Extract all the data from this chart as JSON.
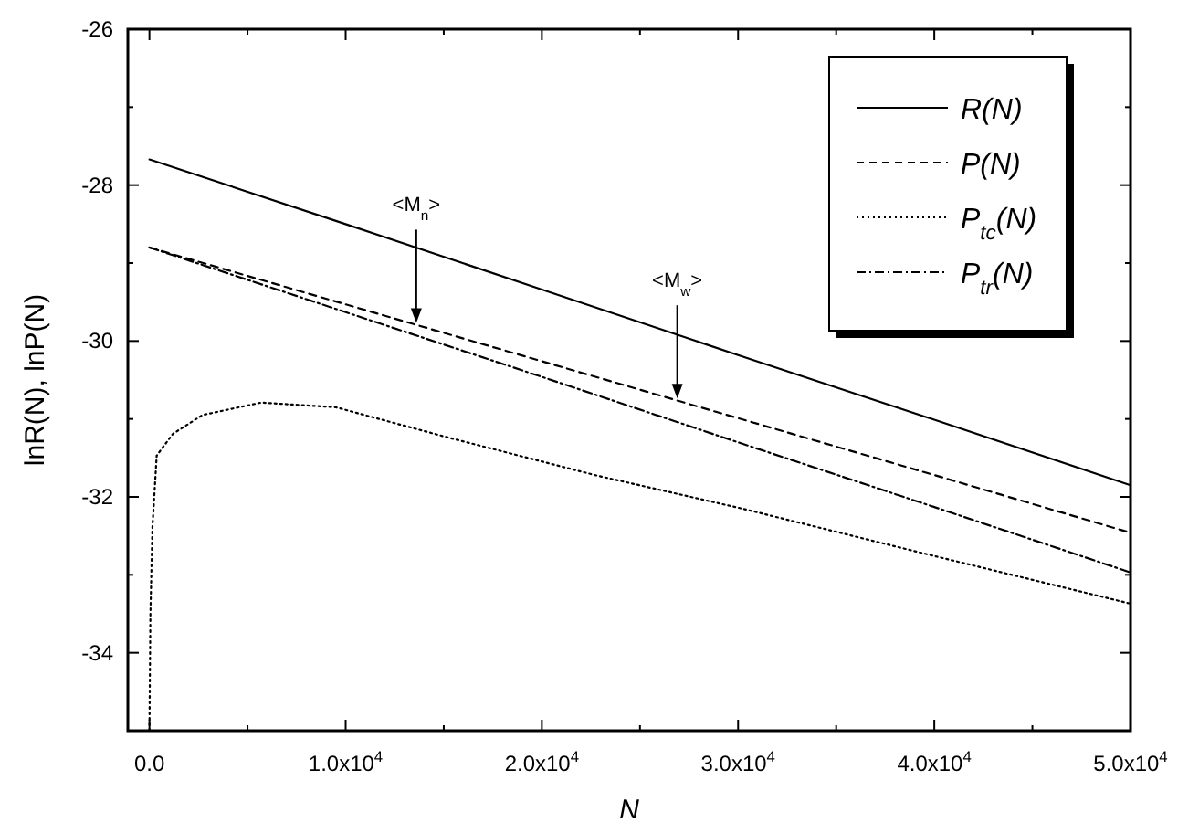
{
  "chart_data": {
    "type": "line",
    "xlabel": "N",
    "ylabel": "lnR(N), lnP(N)",
    "xlim": [
      -1100,
      50000
    ],
    "ylim": [
      -35,
      -26
    ],
    "xticks": [
      {
        "value": 0,
        "label": "0.0"
      },
      {
        "value": 5000,
        "label": null
      },
      {
        "value": 10000,
        "label": "1.0x10$^{4}$"
      },
      {
        "value": 15000,
        "label": null
      },
      {
        "value": 20000,
        "label": "2.0x10$^{4}$"
      },
      {
        "value": 25000,
        "label": null
      },
      {
        "value": 30000,
        "label": "3.0x10$^{4}$"
      },
      {
        "value": 35000,
        "label": null
      },
      {
        "value": 40000,
        "label": "4.0x10$^{4}$"
      },
      {
        "value": 45000,
        "label": null
      },
      {
        "value": 50000,
        "label": "5.0x10$^{4}$"
      }
    ],
    "yticks": [
      {
        "value": -35,
        "label": null
      },
      -34,
      {
        "value": -33,
        "label": null
      },
      -32,
      {
        "value": -31,
        "label": null
      },
      -30,
      {
        "value": -29,
        "label": null
      },
      -28,
      {
        "value": -27,
        "label": null
      },
      -26
    ],
    "grid": false,
    "legend": "top right",
    "marker": "none",
    "series": [
      {
        "name": "R(N)",
        "color": "#000000",
        "line_style": "solid",
        "x": [
          0,
          10000,
          20000,
          30000,
          40000,
          50000
        ],
        "values": [
          -27.67,
          -28.5,
          -29.34,
          -30.18,
          -31.01,
          -31.85
        ]
      },
      {
        "name": "P(N)",
        "color": "#000000",
        "line_style": "dashed",
        "x": [
          0,
          10000,
          20000,
          30000,
          40000,
          50000
        ],
        "values": [
          -28.8,
          -29.53,
          -30.26,
          -30.99,
          -31.72,
          -32.46
        ]
      },
      {
        "name": "P$_{tc}$(N)",
        "color": "#000000",
        "line_style": "dotted",
        "x": [
          0,
          50,
          150,
          370,
          1200,
          2700,
          5700,
          9500,
          15100,
          22700,
          30200,
          39700,
          50000
        ],
        "values": [
          -35,
          -33.5,
          -32.4,
          -31.47,
          -31.19,
          -30.95,
          -30.79,
          -30.85,
          -31.23,
          -31.72,
          -32.15,
          -32.74,
          -33.37
        ]
      },
      {
        "name": "P$_{tr}$(N)",
        "color": "#000000",
        "line_style": "dashdot",
        "x": [
          0,
          10000,
          20000,
          30000,
          40000,
          50000
        ],
        "values": [
          -28.8,
          -29.63,
          -30.46,
          -31.3,
          -32.13,
          -32.97
        ]
      }
    ],
    "annotations": [
      {
        "text": "<M$_{n}$>",
        "x": 13600,
        "y": -29.79
      },
      {
        "text": "<M$_{w}$>",
        "x": 26900,
        "y": -30.76
      }
    ]
  }
}
